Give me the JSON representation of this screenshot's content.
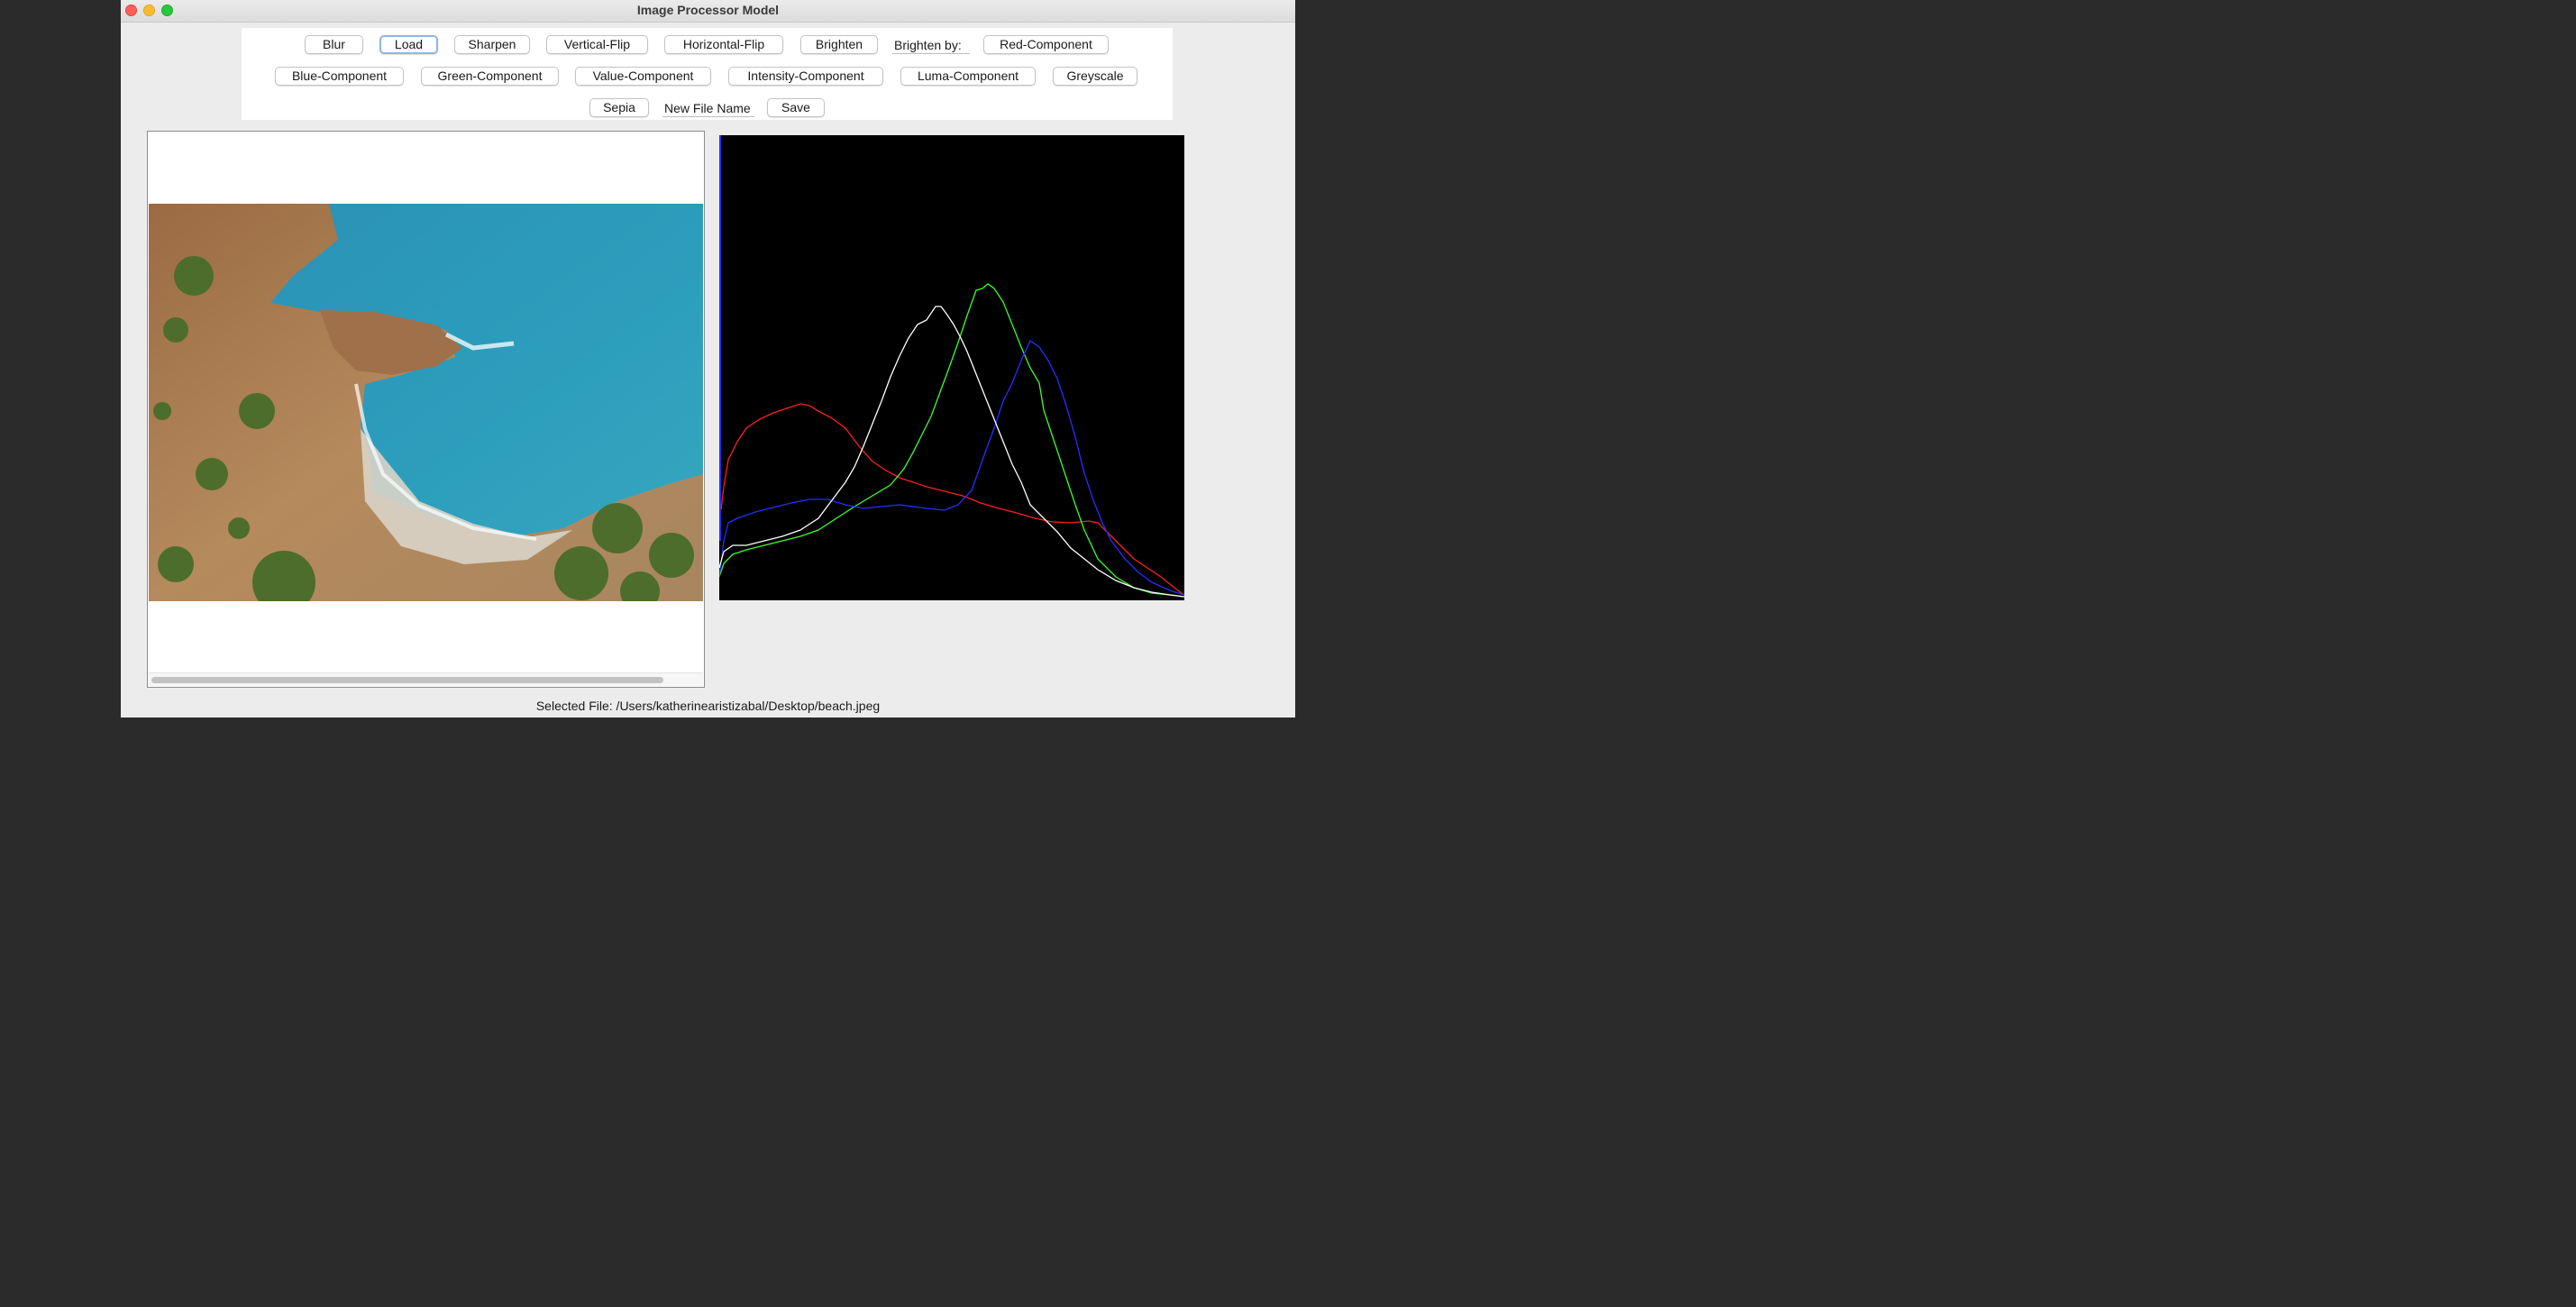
{
  "window": {
    "title": "Image Processor Model"
  },
  "toolbar": {
    "row1": [
      "Blur",
      "Load",
      "Sharpen",
      "Vertical-Flip",
      "Horizontal-Flip",
      "Brighten"
    ],
    "brighten_label": "Brighten by:",
    "red_component": "Red-Component",
    "row2": [
      "Blue-Component",
      "Green-Component",
      "Value-Component",
      "Intensity-Component",
      "Luma-Component",
      "Greyscale"
    ],
    "sepia": "Sepia",
    "filename_value": "New File Name",
    "save": "Save"
  },
  "status": {
    "text": "Selected File: /Users/katherinearistizabal/Desktop/beach.jpeg"
  },
  "colors": {
    "red": "#ff1f1f",
    "green": "#3cff2a",
    "blue": "#2230ff",
    "white": "#ffffff",
    "sea": "#2a8fb0",
    "rock": "#b88a5a",
    "bush": "#4d6d2c"
  },
  "histogram": {
    "background": "black",
    "series_colors": [
      "red",
      "green",
      "blue",
      "white"
    ]
  }
}
